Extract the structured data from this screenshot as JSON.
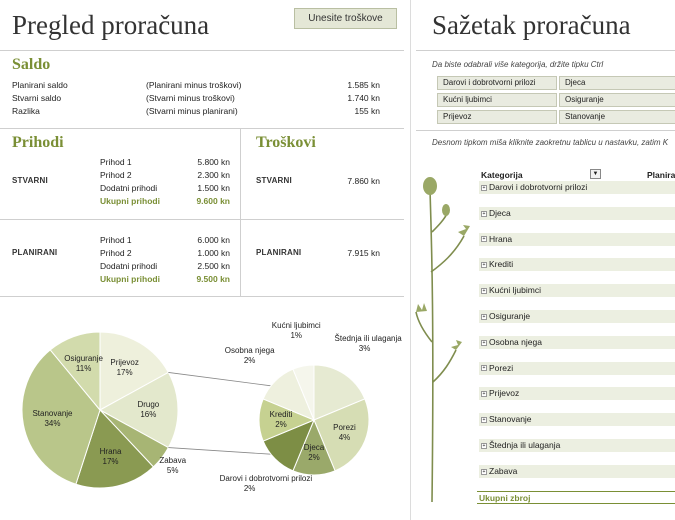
{
  "left": {
    "title": "Pregled proračuna",
    "enter_button": "Unesite troškove",
    "saldo": {
      "heading": "Saldo",
      "rows": [
        {
          "label": "Planirani saldo",
          "note": "(Planirani minus troškovi)",
          "value": "1.585 kn"
        },
        {
          "label": "Stvarni saldo",
          "note": "(Stvarni minus troškovi)",
          "value": "1.740 kn"
        },
        {
          "label": "Razlika",
          "note": "(Stvarni minus planirani)",
          "value": "155 kn"
        }
      ]
    },
    "prihodi": {
      "heading": "Prihodi",
      "stvarni": {
        "label": "STVARNI",
        "rows": [
          {
            "label": "Prihod 1",
            "value": "5.800 kn"
          },
          {
            "label": "Prihod 2",
            "value": "2.300 kn"
          },
          {
            "label": "Dodatni prihodi",
            "value": "1.500 kn"
          }
        ],
        "total_label": "Ukupni prihodi",
        "total_value": "9.600 kn"
      },
      "planirani": {
        "label": "PLANIRANI",
        "rows": [
          {
            "label": "Prihod 1",
            "value": "6.000 kn"
          },
          {
            "label": "Prihod 2",
            "value": "1.000 kn"
          },
          {
            "label": "Dodatni prihodi",
            "value": "2.500 kn"
          }
        ],
        "total_label": "Ukupni prihodi",
        "total_value": "9.500 kn"
      }
    },
    "troskovi": {
      "heading": "Troškovi",
      "stvarni": {
        "label": "STVARNI",
        "value": "7.860 kn"
      },
      "planirani": {
        "label": "PLANIRANI",
        "value": "7.915 kn"
      }
    }
  },
  "chart_data": {
    "type": "pie",
    "title": "",
    "main": [
      {
        "label": "Prijevoz",
        "pct": "17%",
        "value": 17
      },
      {
        "label": "Drugo",
        "pct": "16%",
        "value": 16
      },
      {
        "label": "Zabava",
        "pct": "5%",
        "value": 5
      },
      {
        "label": "Hrana",
        "pct": "17%",
        "value": 17
      },
      {
        "label": "Stanovanje",
        "pct": "34%",
        "value": 34
      },
      {
        "label": "Osiguranje",
        "pct": "11%",
        "value": 11
      }
    ],
    "secondary": [
      {
        "label": "Štednja ili ulaganja",
        "pct": "3%",
        "value": 3
      },
      {
        "label": "Porezi",
        "pct": "4%",
        "value": 4
      },
      {
        "label": "Djeca",
        "pct": "2%",
        "value": 2
      },
      {
        "label": "Darovi i dobrotvorni prilozi",
        "pct": "2%",
        "value": 2
      },
      {
        "label": "Krediti",
        "pct": "2%",
        "value": 2
      },
      {
        "label": "Osobna njega",
        "pct": "2%",
        "value": 2
      },
      {
        "label": "Kućni ljubimci",
        "pct": "1%",
        "value": 1
      }
    ],
    "colors": [
      "#eef0dc",
      "#e3e8cc",
      "#a7b574",
      "#8a9a52",
      "#b9c68a",
      "#d2dbac"
    ]
  },
  "right": {
    "title": "Sažetak proračuna",
    "hint1": "Da biste odabrali više kategorija, držite tipku Ctrl",
    "slicers": [
      [
        "Darovi i dobrotvorni prilozi",
        "Djeca"
      ],
      [
        "Kućni ljubimci",
        "Osiguranje"
      ],
      [
        "Prijevoz",
        "Stanovanje"
      ]
    ],
    "hint2": "Desnom tipkom miša kliknite zaokretnu tablicu u nastavku, zatim K",
    "table": {
      "col1": "Kategorija",
      "col2": "Planira",
      "rows": [
        "Darovi i dobrotvorni prilozi",
        "Djeca",
        "Hrana",
        "Krediti",
        "Kućni ljubimci",
        "Osiguranje",
        "Osobna njega",
        "Porezi",
        "Prijevoz",
        "Stanovanje",
        "Štednja ili ulaganja",
        "Zabava"
      ],
      "total": "Ukupni zbroj"
    }
  }
}
